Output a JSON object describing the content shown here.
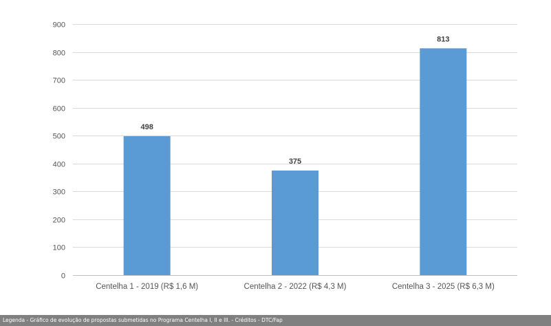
{
  "caption": "Legenda - Gráfico de evolução de propostas submetidas no Programa Centelha I, II e III. - Créditos - DTC/Fap",
  "colors": {
    "bar": "#5b9bd5",
    "grid": "#d9d9d9",
    "axis": "#bfbfbf",
    "caption_bg": "#808080"
  },
  "chart_data": {
    "type": "bar",
    "title": "",
    "xlabel": "",
    "ylabel": "",
    "categories": [
      "Centelha 1 - 2019 (R$ 1,6 M)",
      "Centelha 2 - 2022 (R$ 4,3 M)",
      "Centelha 3 - 2025 (R$ 6,3 M)"
    ],
    "values": [
      498,
      375,
      813
    ],
    "ylim": [
      0,
      900
    ],
    "yticks": [
      0,
      100,
      200,
      300,
      400,
      500,
      600,
      700,
      800,
      900
    ],
    "grid": true,
    "legend": "none",
    "data_labels": true
  }
}
